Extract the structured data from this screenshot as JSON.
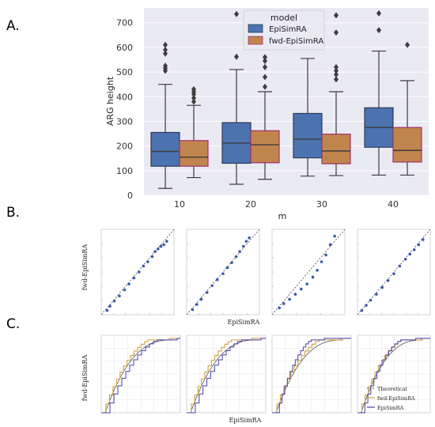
{
  "panel_labels": {
    "a": "A.",
    "b": "B.",
    "c": "C."
  },
  "colors": {
    "plot_bg": "#eaeaf2",
    "grid": "#ffffff",
    "episimra": "#4c72b0",
    "fwd": "#c0854d",
    "whisker": "#3d3d3d",
    "box_edge_a": "#2f3b5c",
    "box_edge_b": "#a0306e",
    "qq_points": "#3b5aa8",
    "ecdf_theoretical": "#555555",
    "ecdf_fwd": "#d1a240",
    "ecdf_epi": "#4a3fb0"
  },
  "chart_data": [
    {
      "type": "box",
      "xlabel": "m",
      "ylabel": "ARG height",
      "ylim": [
        0,
        760
      ],
      "yticks": [
        0,
        100,
        200,
        300,
        400,
        500,
        600,
        700
      ],
      "categories": [
        "10",
        "20",
        "30",
        "40"
      ],
      "grid": true,
      "legend": {
        "title": "model",
        "placement": "top-center"
      },
      "series": [
        {
          "name": "EpiSimRA",
          "stats": [
            {
              "whisker_low": 28,
              "q1": 118,
              "median": 178,
              "q3": 255,
              "whisker_high": 450,
              "outliers": [
                505,
                515,
                525,
                575,
                590,
                610
              ]
            },
            {
              "whisker_low": 45,
              "q1": 130,
              "median": 212,
              "q3": 295,
              "whisker_high": 510,
              "outliers": [
                562,
                735
              ]
            },
            {
              "whisker_low": 78,
              "q1": 152,
              "median": 228,
              "q3": 332,
              "whisker_high": 555,
              "outliers": []
            },
            {
              "whisker_low": 82,
              "q1": 195,
              "median": 275,
              "q3": 355,
              "whisker_high": 585,
              "outliers": [
                670,
                738
              ]
            }
          ]
        },
        {
          "name": "fwd-EpiSimRA",
          "stats": [
            {
              "whisker_low": 72,
              "q1": 118,
              "median": 155,
              "q3": 222,
              "whisker_high": 365,
              "outliers": [
                380,
                395,
                410,
                420,
                430
              ]
            },
            {
              "whisker_low": 65,
              "q1": 132,
              "median": 205,
              "q3": 262,
              "whisker_high": 420,
              "outliers": [
                440,
                480,
                520,
                545,
                560
              ]
            },
            {
              "whisker_low": 80,
              "q1": 128,
              "median": 180,
              "q3": 248,
              "whisker_high": 420,
              "outliers": [
                470,
                490,
                505,
                520,
                660,
                730
              ]
            },
            {
              "whisker_low": 82,
              "q1": 135,
              "median": 182,
              "q3": 275,
              "whisker_high": 465,
              "outliers": [
                610
              ]
            }
          ]
        }
      ]
    },
    {
      "type": "scatter",
      "subtype": "qq-plot",
      "xlabel": "EpiSimRA",
      "ylabel": "fwd-EpiSimRA",
      "panels": [
        {
          "points": [
            [
              0.08,
              0.05
            ],
            [
              0.12,
              0.1
            ],
            [
              0.18,
              0.16
            ],
            [
              0.25,
              0.22
            ],
            [
              0.32,
              0.29
            ],
            [
              0.38,
              0.36
            ],
            [
              0.45,
              0.43
            ],
            [
              0.52,
              0.5
            ],
            [
              0.58,
              0.57
            ],
            [
              0.64,
              0.62
            ],
            [
              0.7,
              0.68
            ],
            [
              0.74,
              0.74
            ],
            [
              0.78,
              0.77
            ],
            [
              0.82,
              0.8
            ],
            [
              0.86,
              0.82
            ],
            [
              0.9,
              0.86
            ]
          ]
        },
        {
          "points": [
            [
              0.08,
              0.06
            ],
            [
              0.14,
              0.12
            ],
            [
              0.2,
              0.18
            ],
            [
              0.28,
              0.26
            ],
            [
              0.35,
              0.34
            ],
            [
              0.42,
              0.41
            ],
            [
              0.5,
              0.48
            ],
            [
              0.56,
              0.55
            ],
            [
              0.62,
              0.61
            ],
            [
              0.68,
              0.68
            ],
            [
              0.73,
              0.74
            ],
            [
              0.78,
              0.8
            ],
            [
              0.82,
              0.86
            ],
            [
              0.86,
              0.9
            ]
          ]
        },
        {
          "points": [
            [
              0.1,
              0.08
            ],
            [
              0.16,
              0.13
            ],
            [
              0.24,
              0.18
            ],
            [
              0.32,
              0.24
            ],
            [
              0.4,
              0.3
            ],
            [
              0.48,
              0.36
            ],
            [
              0.56,
              0.44
            ],
            [
              0.62,
              0.52
            ],
            [
              0.68,
              0.62
            ],
            [
              0.74,
              0.7
            ],
            [
              0.8,
              0.82
            ],
            [
              0.86,
              0.92
            ]
          ]
        },
        {
          "points": [
            [
              0.06,
              0.05
            ],
            [
              0.12,
              0.11
            ],
            [
              0.18,
              0.17
            ],
            [
              0.26,
              0.24
            ],
            [
              0.34,
              0.32
            ],
            [
              0.42,
              0.4
            ],
            [
              0.5,
              0.48
            ],
            [
              0.58,
              0.57
            ],
            [
              0.66,
              0.65
            ],
            [
              0.72,
              0.71
            ],
            [
              0.78,
              0.76
            ],
            [
              0.84,
              0.82
            ],
            [
              0.9,
              0.88
            ]
          ]
        }
      ]
    },
    {
      "type": "line",
      "subtype": "ecdf",
      "xlabel": "EpiSimRA",
      "ylabel": "fwd-EpiSimRA",
      "series": [
        {
          "name": "Theoretical"
        },
        {
          "name": "fwd-EpiSimRA"
        },
        {
          "name": "EpiSimRA"
        }
      ],
      "legend": {
        "placement": "bottom-right"
      }
    }
  ]
}
